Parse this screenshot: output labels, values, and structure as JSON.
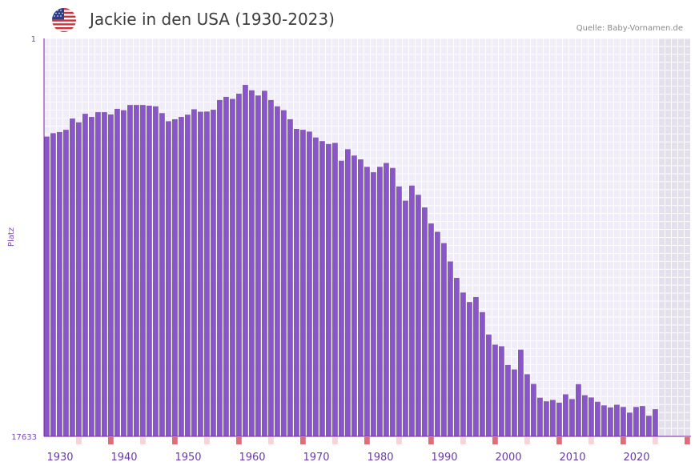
{
  "header": {
    "title": "Jackie in den USA (1930-2023)",
    "source": "Quelle: Baby-Vornamen.de",
    "flag_icon": "us-flag-icon"
  },
  "colors": {
    "bar": "#8a55c8",
    "plot_bg": "#f1ecf9",
    "grid": "#ffffff",
    "future_bg": "#e3dfec",
    "axis": "#7b1fa2",
    "strip_major": "#e06c7a",
    "strip_minor": "#f7d3da"
  },
  "chart_data": {
    "type": "bar",
    "title": "Jackie in den USA (1930-2023)",
    "ylabel": "Platz",
    "xlabel": "",
    "y_axis_inverted": true,
    "ylim": [
      1,
      17633
    ],
    "xlim": [
      1928,
      2028
    ],
    "y_tick_labels": [
      "1",
      "17633"
    ],
    "x_tick_labels": [
      "1930",
      "1940",
      "1950",
      "1960",
      "1970",
      "1980",
      "1990",
      "2000",
      "2010",
      "2020"
    ],
    "x_tick_values": [
      1930,
      1940,
      1950,
      1960,
      1970,
      1980,
      1990,
      2000,
      2010,
      2020
    ],
    "x": [
      1928,
      1929,
      1930,
      1931,
      1932,
      1933,
      1934,
      1935,
      1936,
      1937,
      1938,
      1939,
      1940,
      1941,
      1942,
      1943,
      1944,
      1945,
      1946,
      1947,
      1948,
      1949,
      1950,
      1951,
      1952,
      1953,
      1954,
      1955,
      1956,
      1957,
      1958,
      1959,
      1960,
      1961,
      1962,
      1963,
      1964,
      1965,
      1966,
      1967,
      1968,
      1969,
      1970,
      1971,
      1972,
      1973,
      1974,
      1975,
      1976,
      1977,
      1978,
      1979,
      1980,
      1981,
      1982,
      1983,
      1984,
      1985,
      1986,
      1987,
      1988,
      1989,
      1990,
      1991,
      1992,
      1993,
      1994,
      1995,
      1996,
      1997,
      1998,
      1999,
      2000,
      2001,
      2002,
      2003,
      2004,
      2005,
      2006,
      2007,
      2008,
      2009,
      2010,
      2011,
      2012,
      2013,
      2014,
      2015,
      2016,
      2017,
      2018,
      2019,
      2020,
      2021,
      2022,
      2023
    ],
    "values": [
      4350,
      4200,
      4150,
      4050,
      3550,
      3720,
      3340,
      3480,
      3270,
      3270,
      3370,
      3120,
      3180,
      2950,
      2950,
      2950,
      2980,
      3010,
      3310,
      3670,
      3580,
      3480,
      3380,
      3140,
      3250,
      3240,
      3160,
      2730,
      2590,
      2680,
      2450,
      2060,
      2300,
      2530,
      2320,
      2730,
      3010,
      3180,
      3580,
      4010,
      4050,
      4130,
      4390,
      4550,
      4680,
      4630,
      5420,
      4910,
      5190,
      5360,
      5690,
      5930,
      5690,
      5520,
      5740,
      6560,
      7190,
      6520,
      6930,
      7490,
      8200,
      8570,
      9070,
      9880,
      10610,
      11260,
      11680,
      11460,
      12130,
      13120,
      13570,
      13640,
      14470,
      14670,
      13790,
      14880,
      15310,
      15920,
      16080,
      16020,
      16140,
      15770,
      15980,
      15320,
      15810,
      15910,
      16100,
      16260,
      16350,
      16230,
      16330,
      16580,
      16330,
      16290,
      16720,
      16430
    ],
    "strip_decades": [
      1938,
      1948,
      1958,
      1968,
      1978,
      1988,
      1998,
      2008,
      2018,
      2028
    ],
    "strip_minor_years": [
      1933,
      1943,
      1953,
      1963,
      1973,
      1983,
      1993,
      2003,
      2013,
      2023
    ],
    "future_from": 2024
  }
}
